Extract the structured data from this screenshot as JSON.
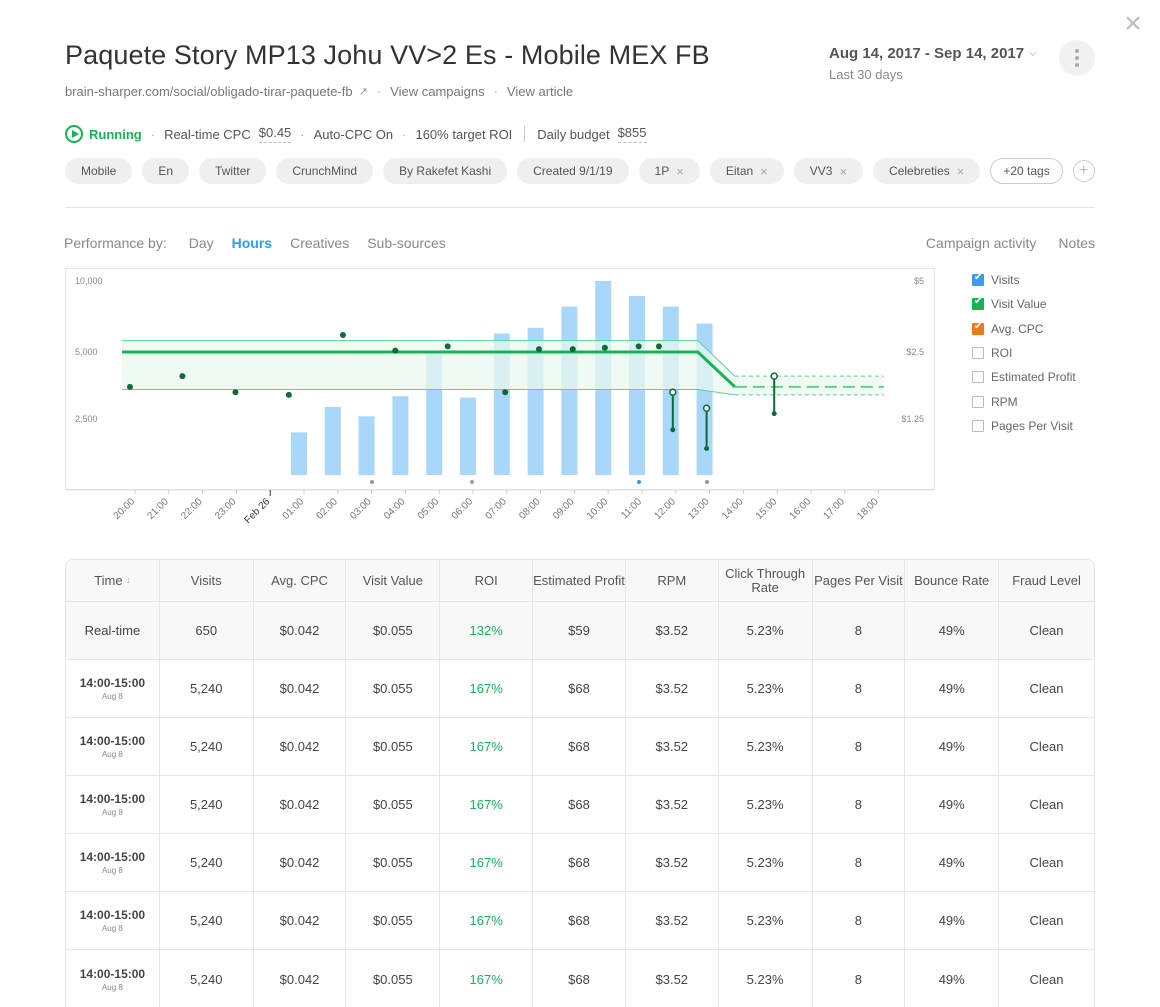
{
  "header": {
    "title": "Paquete Story MP13 Johu VV>2 Es - Mobile MEX FB",
    "url": "brain-sharper.com/social/obligado-tirar-paquete-fb",
    "view_campaigns": "View campaigns",
    "view_article": "View article",
    "date_range": "Aug 14, 2017 - Sep 14, 2017",
    "date_sub": "Last 30 days"
  },
  "status": {
    "state": "Running",
    "rt_cpc_label": "Real-time CPC",
    "rt_cpc_value": "$0.45",
    "auto_cpc": "Auto-CPC On",
    "target_roi": "160% target ROI",
    "budget_label": "Daily budget",
    "budget_value": "$855"
  },
  "tags": [
    {
      "label": "Mobile",
      "removable": false
    },
    {
      "label": "En",
      "removable": false
    },
    {
      "label": "Twitter",
      "removable": false
    },
    {
      "label": "CrunchMind",
      "removable": false
    },
    {
      "label": "By Rakefet Kashi",
      "removable": false
    },
    {
      "label": "Created 9/1/19",
      "removable": false
    },
    {
      "label": "1P",
      "removable": true
    },
    {
      "label": "Eitan",
      "removable": true
    },
    {
      "label": "VV3",
      "removable": true
    },
    {
      "label": "Celebreties",
      "removable": true
    }
  ],
  "more_tags": "+20 tags",
  "perf": {
    "label": "Performance by:",
    "tabs": [
      "Day",
      "Hours",
      "Creatives",
      "Sub-sources"
    ],
    "active": "Hours",
    "right": [
      "Campaign activity",
      "Notes"
    ]
  },
  "legend": [
    {
      "label": "Visits",
      "checked": true,
      "color": "#3d9be9"
    },
    {
      "label": "Visit Value",
      "checked": true,
      "color": "#16b256"
    },
    {
      "label": "Avg. CPC",
      "checked": true,
      "color": "#f07a1a"
    },
    {
      "label": "ROI",
      "checked": false,
      "color": ""
    },
    {
      "label": "Estimated Profit",
      "checked": false,
      "color": ""
    },
    {
      "label": "RPM",
      "checked": false,
      "color": ""
    },
    {
      "label": "Pages Per Visit",
      "checked": false,
      "color": ""
    }
  ],
  "chart_data": {
    "type": "bar",
    "x": [
      "20:00",
      "21:00",
      "22:00",
      "23:00",
      "Feb 26",
      "01:00",
      "02:00",
      "03:00",
      "04:00",
      "05:00",
      "06:00",
      "07:00",
      "08:00",
      "09:00",
      "10:00",
      "11:00",
      "12:00",
      "13:00",
      "14:00",
      "15:00",
      "16:00",
      "17:00",
      "18:00"
    ],
    "y_left_ticks": [
      "10,000",
      "5,000",
      "2,500"
    ],
    "y_right_ticks": [
      "$5",
      "$2.5",
      "$1.25"
    ],
    "series": [
      {
        "name": "Visits",
        "kind": "bar",
        "values": [
          null,
          null,
          null,
          null,
          null,
          2000,
          2950,
          2600,
          3350,
          5000,
          3300,
          6300,
          6700,
          8200,
          10000,
          8950,
          8200,
          7000,
          null,
          null,
          null,
          null,
          null
        ]
      },
      {
        "name": "Visit Value",
        "kind": "line",
        "values": [
          2.5,
          2.5,
          2.5,
          2.5,
          2.5,
          2.5,
          2.5,
          2.5,
          2.5,
          2.5,
          2.5,
          2.5,
          2.5,
          2.5,
          2.5,
          2.5,
          2.5,
          2.5,
          1.85,
          1.85,
          1.85,
          1.85,
          1.85
        ],
        "band_high": 2.9,
        "band_low": 1.8
      },
      {
        "name": "Avg. CPC",
        "kind": "scatter",
        "values": [
          1.85,
          2.05,
          1.75,
          1.7,
          null,
          3.1,
          2.55,
          2.7,
          1.75,
          2.6,
          2.6,
          2.65,
          2.7,
          2.7,
          null,
          null,
          null,
          null,
          null,
          null,
          null,
          null,
          null
        ]
      }
    ],
    "ranges": [
      {
        "x": "12:00",
        "high": 1.75,
        "low": 1.05
      },
      {
        "x": "13:00",
        "high": 1.45,
        "low": 0.7
      },
      {
        "x": "15:00",
        "high": 2.05,
        "low": 1.35
      }
    ],
    "grid": false,
    "legend_position": "right"
  },
  "table": {
    "columns": [
      "Time",
      "Visits",
      "Avg. CPC",
      "Visit Value",
      "ROI",
      "Estimated Profit",
      "RPM",
      "Click Through Rate",
      "Pages Per Visit",
      "Bounce Rate",
      "Fraud Level"
    ],
    "realtime": [
      "Real-time",
      "650",
      "$0.042",
      "$0.055",
      "132%",
      "$59",
      "$3.52",
      "5.23%",
      "8",
      "49%",
      "Clean"
    ],
    "rows": [
      {
        "time": "14:00-15:00",
        "date": "Aug 8",
        "cells": [
          "5,240",
          "$0.042",
          "$0.055",
          "167%",
          "$68",
          "$3.52",
          "5.23%",
          "8",
          "49%",
          "Clean"
        ]
      },
      {
        "time": "14:00-15:00",
        "date": "Aug 8",
        "cells": [
          "5,240",
          "$0.042",
          "$0.055",
          "167%",
          "$68",
          "$3.52",
          "5.23%",
          "8",
          "49%",
          "Clean"
        ]
      },
      {
        "time": "14:00-15:00",
        "date": "Aug 8",
        "cells": [
          "5,240",
          "$0.042",
          "$0.055",
          "167%",
          "$68",
          "$3.52",
          "5.23%",
          "8",
          "49%",
          "Clean"
        ]
      },
      {
        "time": "14:00-15:00",
        "date": "Aug 8",
        "cells": [
          "5,240",
          "$0.042",
          "$0.055",
          "167%",
          "$68",
          "$3.52",
          "5.23%",
          "8",
          "49%",
          "Clean"
        ]
      },
      {
        "time": "14:00-15:00",
        "date": "Aug 8",
        "cells": [
          "5,240",
          "$0.042",
          "$0.055",
          "167%",
          "$68",
          "$3.52",
          "5.23%",
          "8",
          "49%",
          "Clean"
        ]
      },
      {
        "time": "14:00-15:00",
        "date": "Aug 8",
        "cells": [
          "5,240",
          "$0.042",
          "$0.055",
          "167%",
          "$68",
          "$3.52",
          "5.23%",
          "8",
          "49%",
          "Clean"
        ]
      }
    ]
  },
  "colors": {
    "accent": "#2e9bec",
    "success": "#16b256",
    "bar": "#a9d7f9",
    "dot": "#0c6b36"
  }
}
